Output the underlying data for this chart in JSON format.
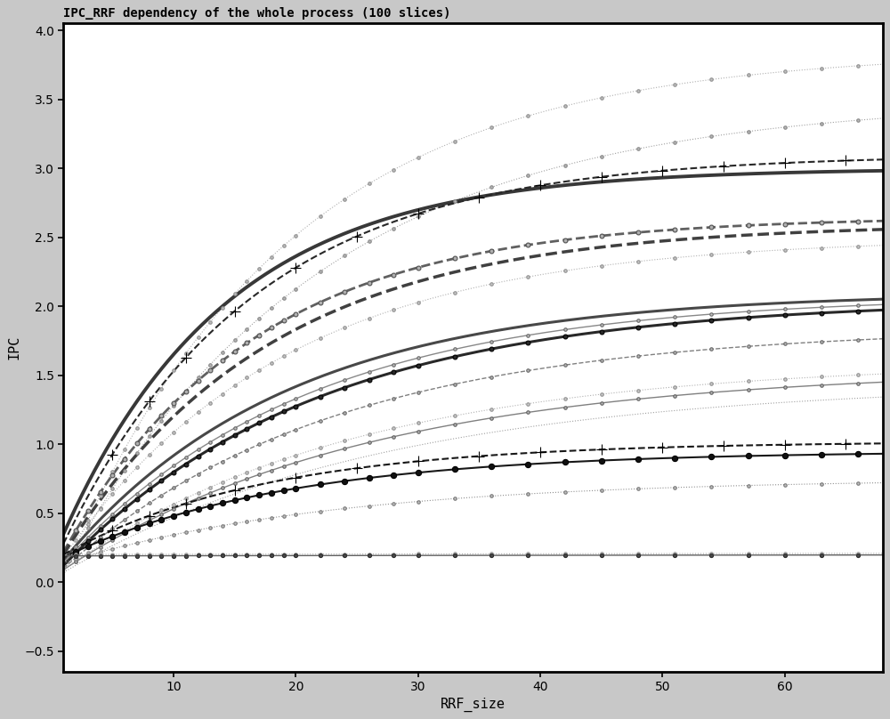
{
  "title": "IPC_RRF dependency of the whole process (100 slices)",
  "xlabel": "RRF_size",
  "ylabel": "IPC",
  "xlim": [
    1,
    68
  ],
  "ylim": [
    -0.65,
    4.05
  ],
  "xticks": [
    10,
    20,
    30,
    40,
    50,
    60
  ],
  "yticks": [
    -0.5,
    0.0,
    0.5,
    1.0,
    1.5,
    2.0,
    2.5,
    3.0,
    3.5,
    4.0
  ],
  "plot_bg": "#ffffff",
  "outer_bg": "#c8c8c8",
  "curves": [
    {
      "A": 3.85,
      "s": 0.05,
      "k": 0.055,
      "color": "#b0b0b0",
      "lw": 0.8,
      "ls": ":",
      "mk": "o",
      "ms": 2.5,
      "mfc": "#c0c0c0",
      "mec": "#909090",
      "every": 2
    },
    {
      "A": 3.5,
      "s": 0.08,
      "k": 0.048,
      "color": "#a0a0a0",
      "lw": 0.8,
      "ls": ":",
      "mk": "o",
      "ms": 2.5,
      "mfc": "#b8b8b8",
      "mec": "#888888",
      "every": 2
    },
    {
      "A": 3.0,
      "s": 0.35,
      "k": 0.075,
      "color": "#383838",
      "lw": 2.8,
      "ls": "-",
      "mk": null,
      "ms": 0,
      "mfc": null,
      "mec": null,
      "every": 2
    },
    {
      "A": 3.1,
      "s": 0.28,
      "k": 0.065,
      "color": "#282828",
      "lw": 1.5,
      "ls": "--",
      "mk": "+",
      "ms": 8,
      "mfc": "#111111",
      "mec": "#000000",
      "every": 3
    },
    {
      "A": 2.65,
      "s": 0.22,
      "k": 0.065,
      "color": "#606060",
      "lw": 2.0,
      "ls": "--",
      "mk": "o",
      "ms": 3.5,
      "mfc": "#b0b0b0",
      "mec": "#505050",
      "every": 2
    },
    {
      "A": 2.6,
      "s": 0.2,
      "k": 0.06,
      "color": "#404040",
      "lw": 2.5,
      "ls": "--",
      "mk": null,
      "ms": 0,
      "mfc": null,
      "mec": null,
      "every": 2
    },
    {
      "A": 2.5,
      "s": 0.18,
      "k": 0.055,
      "color": "#b0b0b0",
      "lw": 0.8,
      "ls": ":",
      "mk": "o",
      "ms": 2.5,
      "mfc": "#c8c8c8",
      "mec": "#909090",
      "every": 2
    },
    {
      "A": 2.1,
      "s": 0.16,
      "k": 0.055,
      "color": "#484848",
      "lw": 2.2,
      "ls": "-",
      "mk": null,
      "ms": 0,
      "mfc": null,
      "mec": null,
      "every": 2
    },
    {
      "A": 2.08,
      "s": 0.14,
      "k": 0.05,
      "color": "#888888",
      "lw": 1.0,
      "ls": "-",
      "mk": "o",
      "ms": 2.5,
      "mfc": "#c0c0c0",
      "mec": "#686868",
      "every": 2
    },
    {
      "A": 2.05,
      "s": 0.12,
      "k": 0.048,
      "color": "#282828",
      "lw": 2.2,
      "ls": "-",
      "mk": "o",
      "ms": 3.5,
      "mfc": "#282828",
      "mec": "#000000",
      "every": 2
    },
    {
      "A": 1.85,
      "s": 0.1,
      "k": 0.045,
      "color": "#808080",
      "lw": 1.0,
      "ls": "--",
      "mk": "o",
      "ms": 2.5,
      "mfc": "#b8b8b8",
      "mec": "#686868",
      "every": 2
    },
    {
      "A": 1.6,
      "s": 0.09,
      "k": 0.042,
      "color": "#b0b0b0",
      "lw": 0.8,
      "ls": ":",
      "mk": "o",
      "ms": 2.5,
      "mfc": "#cccccc",
      "mec": "#909090",
      "every": 2
    },
    {
      "A": 1.55,
      "s": 0.09,
      "k": 0.04,
      "color": "#808080",
      "lw": 1.0,
      "ls": "-",
      "mk": "o",
      "ms": 2.5,
      "mfc": "#b8b8b8",
      "mec": "#606060",
      "every": 2
    },
    {
      "A": 1.45,
      "s": 0.07,
      "k": 0.038,
      "color": "#a0a0a0",
      "lw": 0.8,
      "ls": ":",
      "mk": null,
      "ms": 0,
      "mfc": null,
      "mec": null,
      "every": 2
    },
    {
      "A": 1.02,
      "s": 0.2,
      "k": 0.06,
      "color": "#181818",
      "lw": 1.5,
      "ls": "--",
      "mk": "+",
      "ms": 8,
      "mfc": "#000000",
      "mec": "#000000",
      "every": 3
    },
    {
      "A": 0.95,
      "s": 0.18,
      "k": 0.055,
      "color": "#181818",
      "lw": 1.5,
      "ls": "-",
      "mk": "o",
      "ms": 4.5,
      "mfc": "#101010",
      "mec": "#000000",
      "every": 2
    },
    {
      "A": 0.75,
      "s": 0.14,
      "k": 0.045,
      "color": "#909090",
      "lw": 0.8,
      "ls": ":",
      "mk": "o",
      "ms": 2.5,
      "mfc": "#c0c0c0",
      "mec": "#787878",
      "every": 2
    },
    {
      "A": 0.22,
      "s": 0.2,
      "k": 0.008,
      "color": "#a8a8a8",
      "lw": 0.8,
      "ls": ":",
      "mk": "o",
      "ms": 2.5,
      "mfc": "#c0c0c0",
      "mec": "#989898",
      "every": 2
    },
    {
      "A": 0.21,
      "s": 0.19,
      "k": 0.006,
      "color": "#606060",
      "lw": 1.0,
      "ls": "-",
      "mk": "o",
      "ms": 3.0,
      "mfc": "#484848",
      "mec": "#303030",
      "every": 2
    }
  ],
  "marker_x_dense": [
    2,
    3,
    4,
    5,
    6,
    7,
    8,
    9,
    10,
    11,
    12,
    13,
    14,
    15,
    16,
    17,
    18,
    19,
    20,
    22,
    24,
    26,
    28,
    30,
    33,
    36,
    39,
    42,
    45,
    48,
    51,
    54,
    57,
    60,
    63,
    66
  ],
  "marker_x_sparse": [
    5,
    8,
    11,
    15,
    20,
    25,
    30,
    35,
    40,
    45,
    50,
    55,
    60,
    65
  ]
}
